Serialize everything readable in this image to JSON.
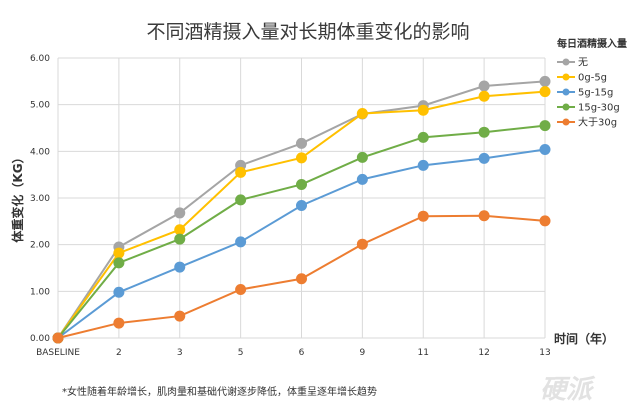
{
  "chart_data": {
    "type": "line",
    "title": "不同酒精摄入量对长期体重变化的影响",
    "ylabel": "体重变化（KG）",
    "xlabel": "时间（年）",
    "categories": [
      "BASELINE",
      "2",
      "3",
      "5",
      "6",
      "9",
      "11",
      "12",
      "13"
    ],
    "ylim": [
      0,
      6
    ],
    "yticks": [
      "0.00",
      "1.00",
      "2.00",
      "3.00",
      "4.00",
      "5.00",
      "6.00"
    ],
    "grid": true,
    "legend_title": "每日酒精摄入量",
    "legend_position": "right",
    "series": [
      {
        "name": "无",
        "color": "#a5a5a5",
        "values": [
          0,
          1.95,
          2.68,
          3.7,
          4.17,
          4.8,
          4.98,
          5.4,
          5.5
        ]
      },
      {
        "name": "0g-5g",
        "color": "#ffc000",
        "values": [
          0,
          1.82,
          2.32,
          3.55,
          3.86,
          4.81,
          4.88,
          5.18,
          5.28
        ]
      },
      {
        "name": "5g-15g",
        "color": "#5b9bd5",
        "values": [
          0,
          0.98,
          1.52,
          2.06,
          2.84,
          3.4,
          3.7,
          3.85,
          4.04
        ]
      },
      {
        "name": "15g-30g",
        "color": "#70ad47",
        "values": [
          0,
          1.61,
          2.12,
          2.96,
          3.29,
          3.87,
          4.3,
          4.41,
          4.55
        ]
      },
      {
        "name": "大于30g",
        "color": "#ed7d31",
        "values": [
          0,
          0.32,
          0.47,
          1.04,
          1.27,
          2.01,
          2.61,
          2.62,
          2.51
        ]
      }
    ],
    "note": "*女性随着年龄增长，肌肉量和基础代谢逐步降低，体重呈逐年增长趋势"
  },
  "watermark": "硬派"
}
